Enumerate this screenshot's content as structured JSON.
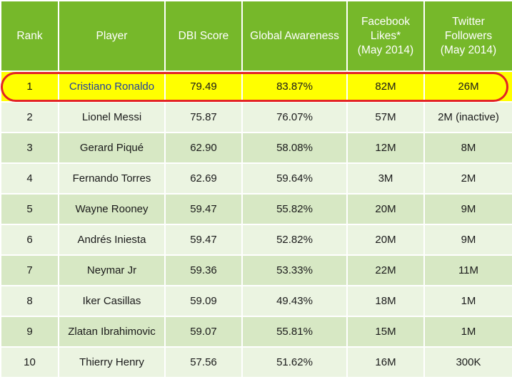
{
  "chart_data": {
    "type": "table",
    "columns": [
      {
        "key": "rank",
        "label_lines": [
          "Rank"
        ]
      },
      {
        "key": "player",
        "label_lines": [
          "Player"
        ]
      },
      {
        "key": "dbi_score",
        "label_lines": [
          "DBI Score"
        ]
      },
      {
        "key": "global_awareness",
        "label_lines": [
          "Global Awareness"
        ]
      },
      {
        "key": "facebook_likes",
        "label_lines": [
          "Facebook",
          "Likes*",
          "(May 2014)"
        ]
      },
      {
        "key": "twitter_followers",
        "label_lines": [
          "Twitter",
          "Followers",
          "(May 2014)"
        ]
      }
    ],
    "rows": [
      {
        "rank": "1",
        "player": "Cristiano Ronaldo",
        "dbi_score": "79.49",
        "global_awareness": "83.87%",
        "facebook_likes": "82M",
        "twitter_followers": "26M"
      },
      {
        "rank": "2",
        "player": "Lionel Messi",
        "dbi_score": "75.87",
        "global_awareness": "76.07%",
        "facebook_likes": "57M",
        "twitter_followers": "2M (inactive)"
      },
      {
        "rank": "3",
        "player": "Gerard Piqué",
        "dbi_score": "62.90",
        "global_awareness": "58.08%",
        "facebook_likes": "12M",
        "twitter_followers": "8M"
      },
      {
        "rank": "4",
        "player": "Fernando Torres",
        "dbi_score": "62.69",
        "global_awareness": "59.64%",
        "facebook_likes": "3M",
        "twitter_followers": "2M"
      },
      {
        "rank": "5",
        "player": "Wayne Rooney",
        "dbi_score": "59.47",
        "global_awareness": "55.82%",
        "facebook_likes": "20M",
        "twitter_followers": "9M"
      },
      {
        "rank": "6",
        "player": "Andrés Iniesta",
        "dbi_score": "59.47",
        "global_awareness": "52.82%",
        "facebook_likes": "20M",
        "twitter_followers": "9M"
      },
      {
        "rank": "7",
        "player": "Neymar Jr",
        "dbi_score": "59.36",
        "global_awareness": "53.33%",
        "facebook_likes": "22M",
        "twitter_followers": "11M"
      },
      {
        "rank": "8",
        "player": "Iker Casillas",
        "dbi_score": "59.09",
        "global_awareness": "49.43%",
        "facebook_likes": "18M",
        "twitter_followers": "1M"
      },
      {
        "rank": "9",
        "player": "Zlatan Ibrahimovic",
        "dbi_score": "59.07",
        "global_awareness": "55.81%",
        "facebook_likes": "15M",
        "twitter_followers": "1M"
      },
      {
        "rank": "10",
        "player": "Thierry Henry",
        "dbi_score": "57.56",
        "global_awareness": "51.62%",
        "facebook_likes": "16M",
        "twitter_followers": "300K"
      }
    ],
    "highlighted_row_index": 0,
    "colors": {
      "header_bg": "#76b82a",
      "header_text": "#ffffff",
      "row_odd_bg": "#d7e8c4",
      "row_even_bg": "#ebf4e1",
      "highlight_bg": "#ffff00",
      "highlight_ring": "#e32424",
      "highlight_player_text": "#1f3fa3"
    }
  }
}
